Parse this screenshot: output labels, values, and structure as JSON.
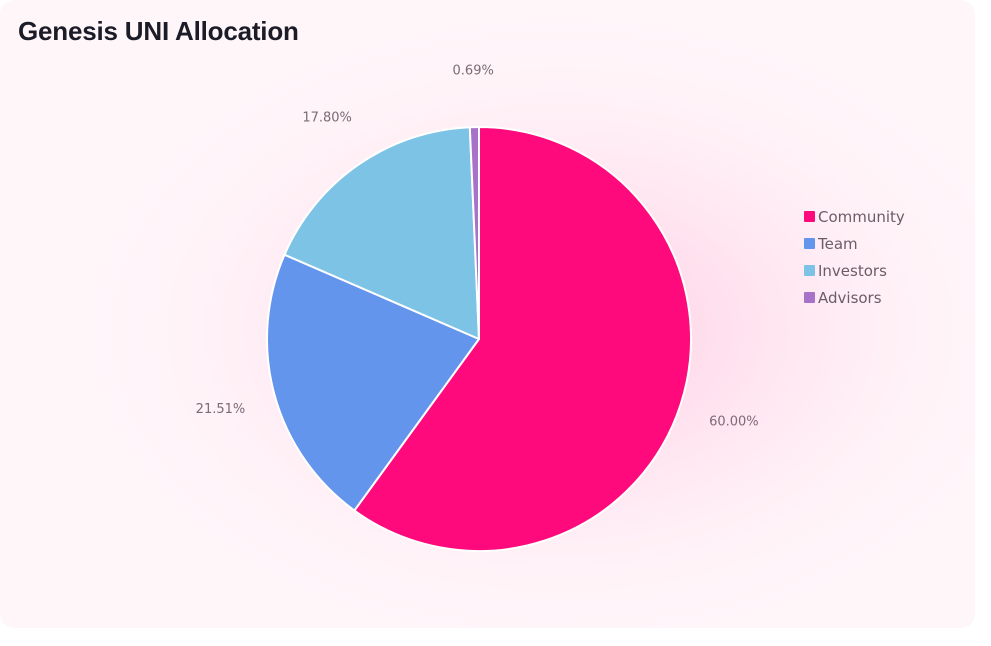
{
  "title": "Genesis UNI Allocation",
  "chart_data": {
    "type": "pie",
    "title": "Genesis UNI Allocation",
    "slices": [
      {
        "name": "Community",
        "value": 60.0,
        "label": "60.00%",
        "color": "#ff0a7c"
      },
      {
        "name": "Team",
        "value": 21.51,
        "label": "21.51%",
        "color": "#6495ed"
      },
      {
        "name": "Investors",
        "value": 17.8,
        "label": "17.80%",
        "color": "#7cc3e6"
      },
      {
        "name": "Advisors",
        "value": 0.69,
        "label": "0.69%",
        "color": "#a772c7"
      }
    ],
    "start_angle": "12 o'clock",
    "direction": "clockwise",
    "legend_position": "right"
  }
}
